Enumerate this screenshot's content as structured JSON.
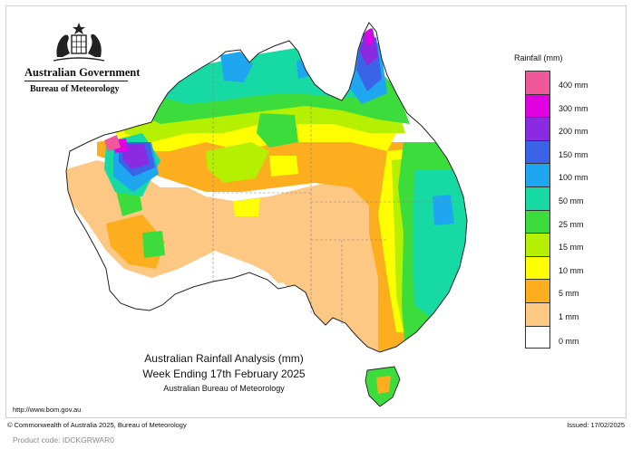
{
  "agency": {
    "government": "Australian Government",
    "bureau": "Bureau of Meteorology"
  },
  "legend": {
    "title": "Rainfall (mm)",
    "classes": [
      {
        "label": "400 mm",
        "color": "#f0589a"
      },
      {
        "label": "300 mm",
        "color": "#e000e0"
      },
      {
        "label": "200 mm",
        "color": "#8a2be2"
      },
      {
        "label": "150 mm",
        "color": "#3b63e8"
      },
      {
        "label": "100 mm",
        "color": "#1ea6f0"
      },
      {
        "label": "50 mm",
        "color": "#16d9a3"
      },
      {
        "label": "25 mm",
        "color": "#3ddc3d"
      },
      {
        "label": "15 mm",
        "color": "#b4f000"
      },
      {
        "label": "10 mm",
        "color": "#ffff00"
      },
      {
        "label": "5 mm",
        "color": "#fcae1e"
      },
      {
        "label": "1 mm",
        "color": "#fcc884"
      },
      {
        "label": "0 mm",
        "color": "#ffffff"
      }
    ]
  },
  "caption": {
    "line1": "Australian Rainfall Analysis (mm)",
    "line2": "Week Ending 17th February 2025",
    "line3": "Australian Bureau of Meteorology"
  },
  "url": "http://www.bom.gov.au",
  "footer": {
    "copyright": "© Commonwealth of Australia 2025, Bureau of Meteorology",
    "issued": "Issued: 17/02/2025"
  },
  "product_code": "Product code: IDCKGRWAR0"
}
